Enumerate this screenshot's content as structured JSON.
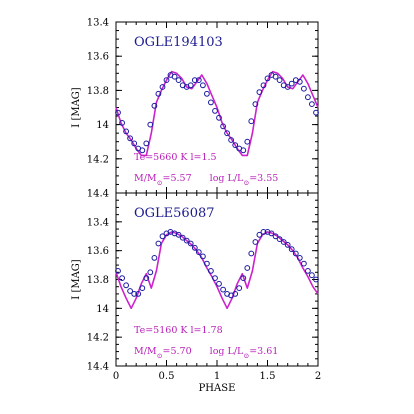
{
  "chart_data": [
    {
      "type": "scatter",
      "title": "OGLE194103",
      "ylabel": "I [MAG]",
      "xlabel": "",
      "xlim": [
        0,
        2
      ],
      "ylim": [
        14.4,
        13.4
      ],
      "y_inverted": true,
      "yticks": [
        "13.4",
        "13.6",
        "13.8",
        "14",
        "14.2",
        "14.4"
      ],
      "annotation_line1": "Te=5660 K   l=1.5",
      "annotation_mass": "M/M",
      "annotation_mass_val": "=5.57",
      "annotation_lum": "log L/L",
      "annotation_lum_val": "=3.55",
      "series": [
        {
          "name": "",
          "style": "model-curve",
          "color": "#cc22cc",
          "x": [
            0,
            0.05,
            0.1,
            0.15,
            0.2,
            0.25,
            0.3,
            0.35,
            0.4,
            0.45,
            0.5,
            0.55,
            0.6,
            0.65,
            0.7,
            0.75,
            0.8,
            0.85,
            0.9,
            0.95,
            1.0,
            1.05,
            1.1,
            1.15,
            1.2,
            1.25,
            1.3,
            1.35,
            1.4,
            1.45,
            1.5,
            1.55,
            1.6,
            1.65,
            1.7,
            1.75,
            1.8,
            1.85,
            1.9,
            1.95,
            2.0
          ],
          "y": [
            13.9,
            13.99,
            14.05,
            14.09,
            14.14,
            14.18,
            14.18,
            14.05,
            13.87,
            13.8,
            13.74,
            13.69,
            13.7,
            13.73,
            13.78,
            13.79,
            13.75,
            13.71,
            13.76,
            13.83,
            13.9,
            13.99,
            14.05,
            14.09,
            14.14,
            14.18,
            14.18,
            14.05,
            13.87,
            13.8,
            13.74,
            13.69,
            13.7,
            13.73,
            13.78,
            13.79,
            13.75,
            13.71,
            13.76,
            13.83,
            13.9
          ]
        },
        {
          "name": "",
          "style": "observed-points",
          "color": "#1a1aa0",
          "x": [
            0.02,
            0.06,
            0.1,
            0.14,
            0.18,
            0.22,
            0.26,
            0.3,
            0.34,
            0.38,
            0.42,
            0.46,
            0.5,
            0.54,
            0.58,
            0.62,
            0.66,
            0.7,
            0.74,
            0.78,
            0.82,
            0.86,
            0.9,
            0.94,
            0.98,
            1.02,
            1.06,
            1.1,
            1.14,
            1.18,
            1.22,
            1.26,
            1.3,
            1.34,
            1.38,
            1.42,
            1.46,
            1.5,
            1.54,
            1.58,
            1.62,
            1.66,
            1.7,
            1.74,
            1.78,
            1.82,
            1.86,
            1.9,
            1.94,
            1.98
          ],
          "y": [
            13.93,
            13.99,
            14.04,
            14.08,
            14.11,
            14.14,
            14.15,
            14.11,
            14.0,
            13.89,
            13.82,
            13.78,
            13.74,
            13.71,
            13.72,
            13.74,
            13.77,
            13.78,
            13.77,
            13.74,
            13.74,
            13.77,
            13.82,
            13.87,
            13.92,
            13.96,
            14.01,
            14.05,
            14.09,
            14.12,
            14.14,
            14.15,
            14.1,
            13.98,
            13.88,
            13.81,
            13.77,
            13.73,
            13.71,
            13.72,
            13.74,
            13.77,
            13.78,
            13.76,
            13.74,
            13.75,
            13.79,
            13.84,
            13.88,
            13.93
          ]
        }
      ]
    },
    {
      "type": "scatter",
      "title": "OGLE56087",
      "ylabel": "I [MAG]",
      "xlabel": "PHASE",
      "xlim": [
        0,
        2
      ],
      "ylim": [
        14.4,
        13.2
      ],
      "y_inverted": true,
      "xticks": [
        "0",
        "0.5",
        "1",
        "1.5",
        "2"
      ],
      "yticks": [
        "13.4",
        "13.6",
        "13.8",
        "14",
        "14.2",
        "14.4"
      ],
      "annotation_line1": "Te=5160 K   l=1.78",
      "annotation_mass": "M/M",
      "annotation_mass_val": "=5.70",
      "annotation_lum": "log L/L",
      "annotation_lum_val": "=3.61",
      "series": [
        {
          "name": "",
          "style": "model-curve",
          "color": "#cc22cc",
          "x": [
            0,
            0.05,
            0.1,
            0.15,
            0.2,
            0.25,
            0.3,
            0.35,
            0.4,
            0.45,
            0.5,
            0.55,
            0.6,
            0.65,
            0.7,
            0.75,
            0.8,
            0.85,
            0.9,
            0.95,
            1.0,
            1.05,
            1.1,
            1.15,
            1.2,
            1.25,
            1.3,
            1.35,
            1.4,
            1.45,
            1.5,
            1.55,
            1.6,
            1.65,
            1.7,
            1.75,
            1.8,
            1.85,
            1.9,
            1.95,
            2.0
          ],
          "y": [
            13.75,
            13.85,
            13.93,
            14.0,
            13.93,
            13.83,
            13.76,
            13.86,
            13.74,
            13.55,
            13.49,
            13.47,
            13.48,
            13.5,
            13.53,
            13.56,
            13.6,
            13.65,
            13.72,
            13.78,
            13.85,
            13.93,
            14.0,
            13.93,
            13.83,
            13.76,
            13.86,
            13.74,
            13.55,
            13.49,
            13.47,
            13.48,
            13.5,
            13.53,
            13.56,
            13.6,
            13.65,
            13.72,
            13.78,
            13.85,
            13.9
          ]
        },
        {
          "name": "",
          "style": "observed-points",
          "color": "#1a1aa0",
          "x": [
            0.02,
            0.06,
            0.1,
            0.14,
            0.18,
            0.22,
            0.26,
            0.3,
            0.34,
            0.38,
            0.42,
            0.46,
            0.5,
            0.54,
            0.58,
            0.62,
            0.66,
            0.7,
            0.74,
            0.78,
            0.82,
            0.86,
            0.9,
            0.94,
            0.98,
            1.02,
            1.06,
            1.1,
            1.14,
            1.18,
            1.22,
            1.26,
            1.3,
            1.34,
            1.38,
            1.42,
            1.46,
            1.5,
            1.54,
            1.58,
            1.62,
            1.66,
            1.7,
            1.74,
            1.78,
            1.82,
            1.86,
            1.9,
            1.94,
            1.98
          ],
          "y": [
            13.74,
            13.79,
            13.84,
            13.88,
            13.9,
            13.9,
            13.86,
            13.79,
            13.75,
            13.65,
            13.55,
            13.5,
            13.48,
            13.47,
            13.48,
            13.49,
            13.51,
            13.53,
            13.55,
            13.58,
            13.61,
            13.64,
            13.69,
            13.74,
            13.79,
            13.83,
            13.87,
            13.9,
            13.91,
            13.9,
            13.86,
            13.79,
            13.72,
            13.62,
            13.54,
            13.49,
            13.47,
            13.47,
            13.48,
            13.5,
            13.52,
            13.54,
            13.56,
            13.59,
            13.62,
            13.65,
            13.69,
            13.74,
            13.77,
            13.8
          ]
        }
      ]
    }
  ]
}
